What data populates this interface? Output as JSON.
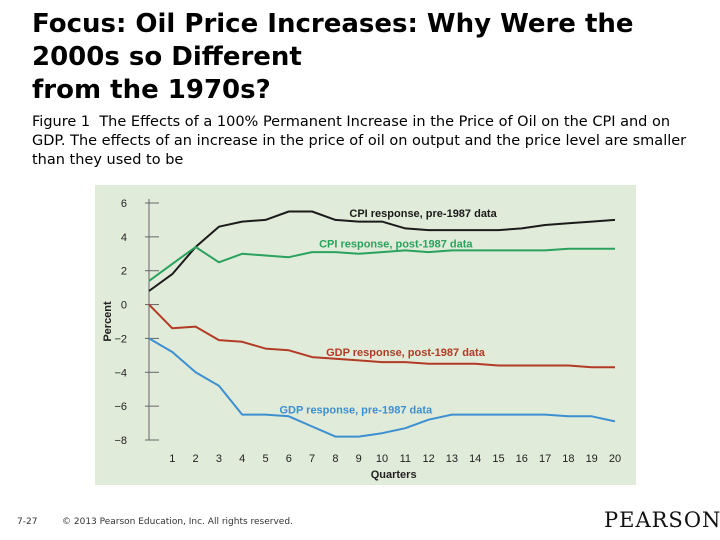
{
  "slide": {
    "title_lines": [
      "Focus: Oil Price Increases: Why Were the",
      "2000s so Different",
      "from the 1970s?"
    ],
    "caption_label": "Figure 1",
    "caption_text": "The Effects of a 100% Permanent Increase in the Price of Oil on the CPI and on GDP. The effects of an increase in the price of oil on output and the price level are smaller than they used to be",
    "slide_number": "7-27",
    "copyright": "© 2013 Pearson Education, Inc. All rights reserved.",
    "logo_text": "PEARSON"
  },
  "chart_data": {
    "type": "line",
    "title": "",
    "xlabel": "Quarters",
    "ylabel": "Percent",
    "x": [
      0,
      1,
      2,
      3,
      4,
      5,
      6,
      7,
      8,
      9,
      10,
      11,
      12,
      13,
      14,
      15,
      16,
      17,
      18,
      19,
      20
    ],
    "xticks": [
      1,
      2,
      3,
      4,
      5,
      6,
      7,
      8,
      9,
      10,
      11,
      12,
      13,
      14,
      15,
      16,
      17,
      18,
      19,
      20
    ],
    "yticks": [
      6,
      4,
      2,
      0,
      -2,
      -4,
      -6,
      -8
    ],
    "ytick_labels": [
      "6",
      "4",
      "2",
      "0",
      "−2",
      "−4",
      "−6",
      "−8"
    ],
    "xlim": [
      0,
      20
    ],
    "ylim": [
      -8,
      6
    ],
    "background": "#e1ebd9",
    "series": [
      {
        "name": "CPI response, pre-1987 data",
        "color": "#1b1b1b",
        "x": [
          0,
          1,
          2,
          3,
          4,
          5,
          6,
          7,
          8,
          9,
          10,
          11,
          12,
          13,
          14,
          15,
          16,
          17,
          18,
          19,
          20
        ],
        "values": [
          0.8,
          1.8,
          3.4,
          4.6,
          4.9,
          5.0,
          5.5,
          5.5,
          5.0,
          4.9,
          4.9,
          4.5,
          4.4,
          4.4,
          4.4,
          4.4,
          4.5,
          4.7,
          4.8,
          4.9,
          5.0
        ]
      },
      {
        "name": "CPI response, post-1987 data",
        "color": "#2aa25e",
        "x": [
          0,
          1,
          2,
          3,
          4,
          5,
          6,
          7,
          8,
          9,
          10,
          11,
          12,
          13,
          14,
          15,
          16,
          17,
          18,
          19,
          20
        ],
        "values": [
          1.4,
          2.4,
          3.4,
          2.5,
          3.0,
          2.9,
          2.8,
          3.1,
          3.1,
          3.0,
          3.1,
          3.2,
          3.1,
          3.2,
          3.2,
          3.2,
          3.2,
          3.2,
          3.3,
          3.3,
          3.3
        ]
      },
      {
        "name": "GDP response, post-1987 data",
        "color": "#b23b25",
        "x": [
          0,
          1,
          2,
          3,
          4,
          5,
          6,
          7,
          8,
          9,
          10,
          11,
          12,
          13,
          14,
          15,
          16,
          17,
          18,
          19,
          20
        ],
        "values": [
          0.0,
          -1.4,
          -1.3,
          -2.1,
          -2.2,
          -2.6,
          -2.7,
          -3.1,
          -3.2,
          -3.3,
          -3.4,
          -3.4,
          -3.5,
          -3.5,
          -3.5,
          -3.6,
          -3.6,
          -3.6,
          -3.6,
          -3.7,
          -3.7
        ]
      },
      {
        "name": "GDP response, pre-1987 data",
        "color": "#3d8fd1",
        "x": [
          0,
          1,
          2,
          3,
          4,
          5,
          6,
          7,
          8,
          9,
          10,
          11,
          12,
          13,
          14,
          15,
          16,
          17,
          18,
          19,
          20
        ],
        "values": [
          -2.0,
          -2.8,
          -4.0,
          -4.8,
          -6.5,
          -6.5,
          -6.6,
          -7.2,
          -7.8,
          -7.8,
          -7.6,
          -7.3,
          -6.8,
          -6.5,
          -6.5,
          -6.5,
          -6.5,
          -6.5,
          -6.6,
          -6.6,
          -6.9
        ]
      }
    ],
    "annotations": [
      {
        "text": "CPI response, pre-1987 data",
        "series": 0,
        "anchor_x": 8.6,
        "anchor_y": 5.4
      },
      {
        "text": "CPI response, post-1987 data",
        "series": 1,
        "anchor_x": 7.3,
        "anchor_y": 3.6
      },
      {
        "text": "GDP response, post-1987 data",
        "series": 2,
        "anchor_x": 7.6,
        "anchor_y": -2.8
      },
      {
        "text": "GDP response, pre-1987 data",
        "series": 3,
        "anchor_x": 5.6,
        "anchor_y": -6.2
      }
    ]
  }
}
